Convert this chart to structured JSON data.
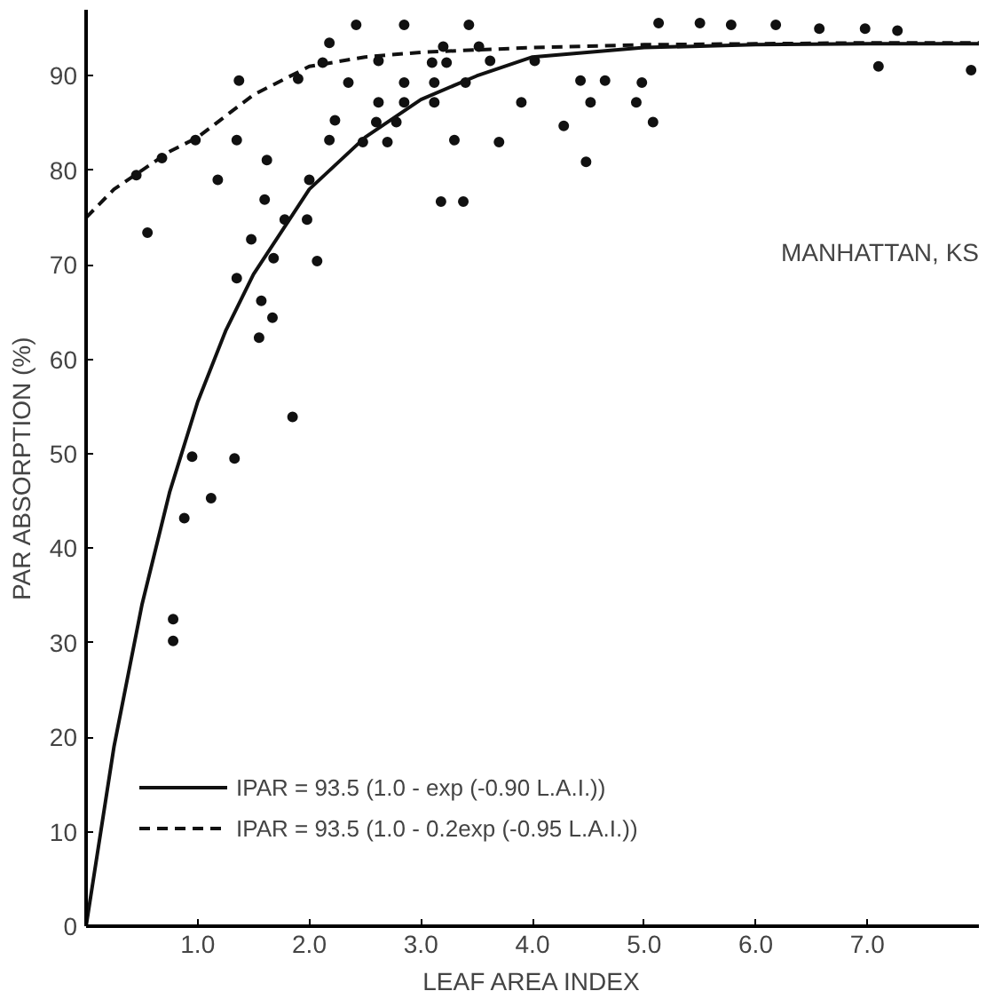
{
  "chart_data": {
    "type": "scatter",
    "xlabel": "LEAF AREA INDEX",
    "ylabel": "PAR ABSORPTION (%)",
    "annotations": [
      "MANHATTAN, KS"
    ],
    "xlim": [
      0,
      8
    ],
    "ylim": [
      0,
      97
    ],
    "xticks": [
      {
        "value": 1,
        "label": "1.0"
      },
      {
        "value": 2,
        "label": "2.0"
      },
      {
        "value": 3,
        "label": "3.0"
      },
      {
        "value": 4,
        "label": "4.0"
      },
      {
        "value": 5,
        "label": "5.0"
      },
      {
        "value": 6,
        "label": "6.0"
      },
      {
        "value": 7,
        "label": "7.0"
      }
    ],
    "yticks": [
      0,
      10,
      20,
      30,
      40,
      50,
      60,
      70,
      80,
      90
    ],
    "grid": false,
    "legend": "bottom left",
    "series": [
      {
        "marker": "circle",
        "color": "#111111",
        "x": [
          2.42,
          2.85,
          3.43,
          2.18,
          1.37,
          1.9,
          2.12,
          2.35,
          2.62,
          2.85,
          3.12,
          3.4,
          3.1,
          3.23,
          3.62,
          4.02,
          3.2,
          3.52,
          2.62,
          2.85,
          3.12,
          3.9,
          2.23,
          2.6,
          2.78,
          2.18,
          2.48,
          2.7,
          3.3,
          3.7,
          1.35,
          1.62,
          1.18,
          2.0,
          1.6,
          1.78,
          1.98,
          1.48,
          1.68,
          2.07,
          1.35,
          1.57,
          1.67,
          1.55,
          3.18,
          3.38,
          0.45,
          0.68,
          0.98,
          0.55,
          5.13,
          5.5,
          5.78,
          6.18,
          6.57,
          6.98,
          7.27,
          7.1,
          7.93,
          4.52,
          4.93,
          4.43,
          4.65,
          4.98,
          4.28,
          5.08,
          4.48,
          1.85,
          1.33,
          0.95,
          1.12,
          0.88,
          0.78,
          0.78
        ],
        "values": [
          95.4,
          95.4,
          95.4,
          93.5,
          89.5,
          89.7,
          91.4,
          89.3,
          91.6,
          89.3,
          89.3,
          89.3,
          91.4,
          91.4,
          91.6,
          91.6,
          93.1,
          93.1,
          87.2,
          87.2,
          87.2,
          87.2,
          85.3,
          85.1,
          85.1,
          83.2,
          83.0,
          83.0,
          83.2,
          83.0,
          83.2,
          81.1,
          79.0,
          79.0,
          76.9,
          74.8,
          74.8,
          72.7,
          70.7,
          70.4,
          68.6,
          66.2,
          64.4,
          62.3,
          76.7,
          76.7,
          79.5,
          81.3,
          83.2,
          73.4,
          95.6,
          95.6,
          95.4,
          95.4,
          95.0,
          95.0,
          94.8,
          91.0,
          90.6,
          87.2,
          87.2,
          89.5,
          89.5,
          89.3,
          84.7,
          85.1,
          80.9,
          53.9,
          49.5,
          49.7,
          45.3,
          43.2,
          32.5,
          30.2
        ]
      },
      {
        "type": "line",
        "name": "IPAR = 93.5 (1.0 - exp (-0.90 L.A.I.))",
        "color": "#111111",
        "line_style": "solid",
        "x": [
          0,
          0.25,
          0.5,
          0.75,
          1,
          1.25,
          1.5,
          2,
          2.5,
          3,
          3.5,
          4,
          5,
          6,
          7,
          8
        ],
        "values": [
          0,
          19,
          34,
          46,
          55.5,
          63,
          69,
          78,
          83.5,
          87.5,
          90,
          92,
          93,
          93.3,
          93.4,
          93.4
        ]
      },
      {
        "type": "line",
        "name": "IPAR = 93.5 (1.0 - 0.2exp (-0.95 L.A.I.))",
        "color": "#111111",
        "line_style": "dashed",
        "x": [
          0,
          0.25,
          0.5,
          0.75,
          1,
          1.5,
          2,
          2.5,
          3,
          4,
          5,
          6,
          7,
          8
        ],
        "values": [
          75,
          78,
          80,
          82,
          83.5,
          88,
          91,
          92,
          92.5,
          93,
          93.3,
          93.4,
          93.5,
          93.5
        ]
      }
    ]
  }
}
